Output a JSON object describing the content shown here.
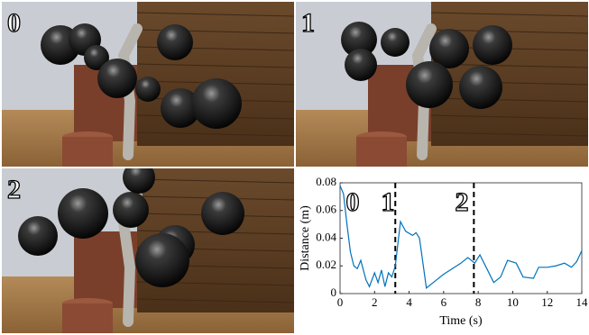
{
  "panels": [
    {
      "label": "0"
    },
    {
      "label": "1"
    },
    {
      "label": "2"
    }
  ],
  "chart_data": {
    "type": "line",
    "x_label": "Time (s)",
    "y_label": "Distance (m)",
    "xlim": [
      0,
      14
    ],
    "xticks": [
      0,
      2,
      4,
      6,
      8,
      10,
      12,
      14
    ],
    "ylim": [
      0,
      0.08
    ],
    "yticks": [
      0,
      0.02,
      0.04,
      0.06,
      0.08
    ],
    "color": "#0072bd",
    "x": [
      0,
      0.2,
      0.4,
      0.6,
      0.8,
      1.0,
      1.2,
      1.5,
      1.7,
      2.0,
      2.2,
      2.4,
      2.6,
      2.8,
      3.0,
      3.2,
      3.5,
      3.8,
      4.2,
      4.4,
      4.6,
      5.0,
      5.5,
      6.0,
      6.5,
      7.0,
      7.4,
      7.8,
      8.1,
      8.5,
      8.9,
      9.3,
      9.7,
      10.2,
      10.6,
      11.2,
      11.5,
      12.0,
      12.5,
      13.0,
      13.4,
      13.7,
      14.0
    ],
    "values": [
      0.078,
      0.072,
      0.05,
      0.03,
      0.02,
      0.018,
      0.024,
      0.01,
      0.005,
      0.015,
      0.008,
      0.017,
      0.005,
      0.015,
      0.012,
      0.02,
      0.052,
      0.045,
      0.042,
      0.044,
      0.04,
      0.004,
      0.009,
      0.014,
      0.018,
      0.022,
      0.026,
      0.022,
      0.028,
      0.018,
      0.008,
      0.012,
      0.024,
      0.022,
      0.012,
      0.011,
      0.019,
      0.019,
      0.02,
      0.022,
      0.019,
      0.023,
      0.031
    ],
    "vlines": [
      3.2,
      7.75
    ],
    "annotations": [
      "0",
      "1",
      "2"
    ]
  }
}
